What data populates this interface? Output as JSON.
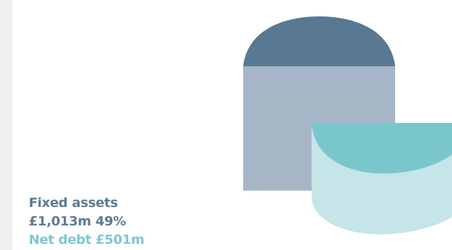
{
  "caption": {
    "line1": "Fixed assets",
    "line2": "£1,013m 49%",
    "line3": "Net debt £501m"
  },
  "colors": {
    "primary_text": "#5b7a95",
    "accent_text": "#7ec8cf",
    "dark_blue_cap": "#587991",
    "grey_blue_block": "#a7b6c6",
    "teal_cap": "#79c7cd",
    "light_teal_body": "#c5e5e8",
    "side_strip": "#efefed"
  }
}
